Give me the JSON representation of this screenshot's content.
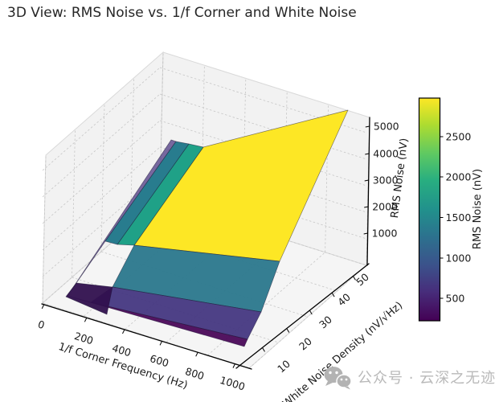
{
  "title": "3D View: RMS Noise vs. 1/f Corner and White Noise",
  "watermark": {
    "text": "公众号 · 云深之无迹",
    "icon": "wechat-icon"
  },
  "axes": {
    "x": {
      "label": "1/f Corner Frequency (Hz)",
      "ticks": [
        "0",
        "200",
        "400",
        "600",
        "800",
        "1000"
      ]
    },
    "y": {
      "label": "White Noise Density (nV/√Hz)",
      "ticks": [
        "10",
        "20",
        "30",
        "40",
        "50"
      ]
    },
    "z": {
      "label": "RMS Noise (nV)",
      "ticks": [
        "1000",
        "2000",
        "3000",
        "4000",
        "5000"
      ]
    }
  },
  "colorbar": {
    "label": "RMS Noise (nV)",
    "ticks": [
      "500",
      "1000",
      "1500",
      "2000",
      "2500"
    ],
    "vmin": 230,
    "vmax": 2980,
    "colormap": "viridis"
  },
  "chart_data": {
    "type": "surface",
    "title": "3D View: RMS Noise vs. 1/f Corner and White Noise",
    "xlabel": "1/f Corner Frequency (Hz)",
    "ylabel": "White Noise Density (nV/√Hz)",
    "zlabel": "RMS Noise (nV)",
    "x_corner_freq_hz": [
      0,
      200,
      400,
      600,
      800,
      1000
    ],
    "y_white_noise_nv_rthz": [
      10,
      20,
      30,
      40,
      50
    ],
    "z_rms_noise_nv": [
      [
        316,
        533,
        684,
        807,
        914,
        1010
      ],
      [
        632,
        1066,
        1368,
        1615,
        1829,
        2020
      ],
      [
        949,
        1599,
        2052,
        2422,
        2743,
        3030
      ],
      [
        1265,
        2132,
        2736,
        3230,
        3657,
        4040
      ],
      [
        1581,
        2665,
        3420,
        4037,
        4572,
        5050
      ]
    ],
    "zlim": [
      0,
      5500
    ],
    "colormap": "viridis",
    "grid": true,
    "colorbar_range": [
      230,
      2980
    ]
  }
}
